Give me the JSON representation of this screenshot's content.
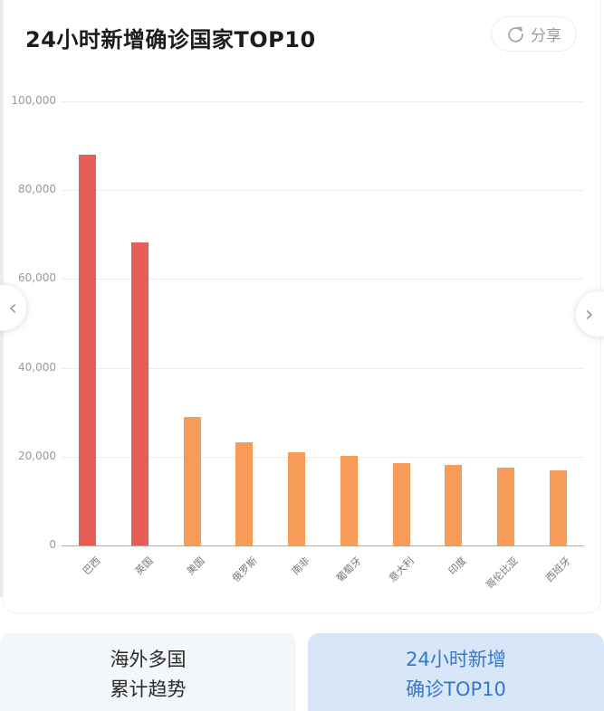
{
  "header": {
    "title": "24小时新增确诊国家TOP10",
    "share_label": "分享"
  },
  "chart_data": {
    "type": "bar",
    "title": "24小时新增确诊国家TOP10",
    "categories": [
      "巴西",
      "英国",
      "美国",
      "俄罗斯",
      "南非",
      "葡萄牙",
      "意大利",
      "印度",
      "哥伦比亚",
      "西班牙"
    ],
    "values": [
      88000,
      68200,
      29000,
      23300,
      21000,
      20200,
      18600,
      18200,
      17500,
      16900
    ],
    "bar_colors": [
      "#e75d58",
      "#e75d58",
      "#f79b58",
      "#f79b58",
      "#f79b58",
      "#f79b58",
      "#f79b58",
      "#f79b58",
      "#f79b58",
      "#f79b58"
    ],
    "xlabel": "",
    "ylabel": "",
    "ylim": [
      0,
      100000
    ],
    "yticks": [
      0,
      20000,
      40000,
      60000,
      80000,
      100000
    ],
    "ytick_labels": [
      "0",
      "20,000",
      "40,000",
      "60,000",
      "80,000",
      "100,000"
    ],
    "grid": true,
    "legend": false,
    "xlabel_rotation_deg": 45
  },
  "carousel": {
    "prev_icon": "‹",
    "next_icon": "›"
  },
  "tabs": [
    {
      "line1": "海外多国",
      "line2": "累计趋势",
      "active": false
    },
    {
      "line1": "24小时新增",
      "line2": "确诊TOP10",
      "active": true
    }
  ],
  "colors": {
    "bar_highlight": "#e75d58",
    "bar_normal": "#f79b58",
    "active_tab_bg": "#d8e6f7",
    "active_tab_text": "#3578cd",
    "inactive_tab_bg": "#f3f7fa",
    "inactive_tab_text": "#2b2b2b",
    "gridline": "#ededed",
    "axis_line": "#aaaaaa"
  }
}
